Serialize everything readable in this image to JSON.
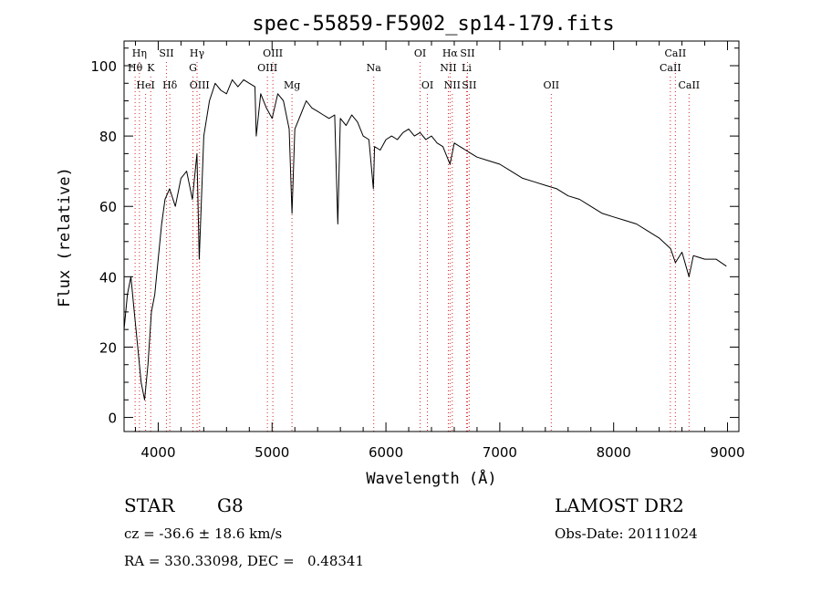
{
  "chart_data": {
    "type": "line",
    "title": "spec-55859-F5902_sp14-179.fits",
    "xlabel": "Wavelength (Å)",
    "ylabel": "Flux (relative)",
    "xlim": [
      3700,
      9100
    ],
    "ylim": [
      -4,
      107
    ],
    "xticks": [
      4000,
      5000,
      6000,
      7000,
      8000,
      9000
    ],
    "yticks": [
      0,
      20,
      40,
      60,
      80,
      100
    ],
    "grid": false,
    "series": [
      {
        "x": [
          3700,
          3730,
          3760,
          3790,
          3820,
          3850,
          3880,
          3910,
          3940,
          3970,
          4000,
          4030,
          4060,
          4100,
          4150,
          4200,
          4250,
          4300,
          4340,
          4360,
          4400,
          4450,
          4500,
          4550,
          4600,
          4650,
          4700,
          4750,
          4800,
          4850,
          4861,
          4900,
          4950,
          5000,
          5050,
          5100,
          5150,
          5175,
          5200,
          5250,
          5300,
          5350,
          5400,
          5450,
          5500,
          5550,
          5577,
          5600,
          5650,
          5700,
          5750,
          5800,
          5850,
          5890,
          5900,
          5950,
          6000,
          6050,
          6100,
          6150,
          6200,
          6250,
          6300,
          6350,
          6400,
          6450,
          6500,
          6563,
          6600,
          6650,
          6700,
          6750,
          6800,
          6900,
          7000,
          7100,
          7200,
          7300,
          7400,
          7500,
          7600,
          7700,
          7800,
          7900,
          8000,
          8100,
          8200,
          8300,
          8400,
          8500,
          8542,
          8600,
          8662,
          8700,
          8800,
          8900,
          8990
        ],
        "y": [
          25,
          35,
          40,
          30,
          20,
          10,
          5,
          15,
          30,
          35,
          45,
          55,
          62,
          65,
          60,
          68,
          70,
          62,
          75,
          45,
          80,
          90,
          95,
          93,
          92,
          96,
          94,
          96,
          95,
          94,
          80,
          92,
          88,
          85,
          92,
          90,
          82,
          58,
          82,
          86,
          90,
          88,
          87,
          86,
          85,
          86,
          55,
          85,
          83,
          86,
          84,
          80,
          79,
          65,
          77,
          76,
          79,
          80,
          79,
          81,
          82,
          80,
          81,
          79,
          80,
          78,
          77,
          72,
          78,
          77,
          76,
          75,
          74,
          73,
          72,
          70,
          68,
          67,
          66,
          65,
          63,
          62,
          60,
          58,
          57,
          56,
          55,
          53,
          51,
          48,
          44,
          47,
          40,
          46,
          45,
          45,
          43
        ]
      }
    ],
    "lines": [
      {
        "label": "Hη",
        "x": 3835,
        "row": 1
      },
      {
        "label": "Hθ",
        "x": 3797,
        "row": 2
      },
      {
        "label": "K",
        "x": 3934,
        "row": 2
      },
      {
        "label": "HeI",
        "x": 3889,
        "row": 3
      },
      {
        "label": "SII",
        "x": 4072,
        "row": 1
      },
      {
        "label": "Hδ",
        "x": 4102,
        "row": 3
      },
      {
        "label": "Hγ",
        "x": 4341,
        "row": 1
      },
      {
        "label": "G",
        "x": 4305,
        "row": 2
      },
      {
        "label": "OIII",
        "x": 4363,
        "row": 3
      },
      {
        "label": "OIII",
        "x": 5007,
        "row": 1
      },
      {
        "label": "OIII",
        "x": 4959,
        "row": 2
      },
      {
        "label": "Mg",
        "x": 5175,
        "row": 3
      },
      {
        "label": "Na",
        "x": 5893,
        "row": 2
      },
      {
        "label": "OI",
        "x": 6300,
        "row": 1
      },
      {
        "label": "OI",
        "x": 6364,
        "row": 3
      },
      {
        "label": "Hα",
        "x": 6563,
        "row": 1
      },
      {
        "label": "SII",
        "x": 6716,
        "row": 1
      },
      {
        "label": "NII",
        "x": 6548,
        "row": 2
      },
      {
        "label": "Li",
        "x": 6708,
        "row": 2
      },
      {
        "label": "NII",
        "x": 6583,
        "row": 3
      },
      {
        "label": "SII",
        "x": 6731,
        "row": 3
      },
      {
        "label": "OII",
        "x": 7452,
        "row": 3
      },
      {
        "label": "CaII",
        "x": 8542,
        "row": 1
      },
      {
        "label": "CaII",
        "x": 8498,
        "row": 2
      },
      {
        "label": "CaII",
        "x": 8662,
        "row": 3
      }
    ]
  },
  "info": {
    "object_class": "STAR",
    "subclass": "G8",
    "survey": "LAMOST DR2",
    "redshift": "cz = -36.6 ± 18.6 km/s",
    "obs_date": "Obs-Date: 20111024",
    "coords": "RA = 330.33098, DEC =   0.48341"
  },
  "colors": {
    "line": "#000000",
    "marker": "#d62728",
    "background": "#ffffff"
  }
}
